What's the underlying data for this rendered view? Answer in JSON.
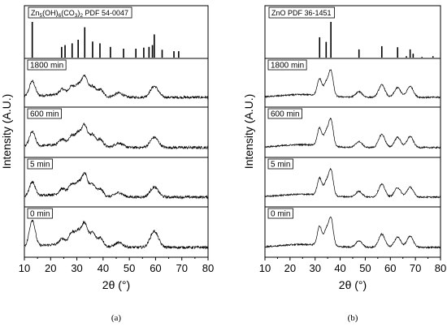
{
  "chart_data": [
    {
      "type": "line",
      "panel_label": "(a)",
      "xlabel": "2θ (°)",
      "ylabel": "Intensity (A.U.)",
      "xlim": [
        10,
        80
      ],
      "xticks": [
        10,
        20,
        30,
        40,
        50,
        60,
        70,
        80
      ],
      "reference": {
        "label_parts": [
          "Zn",
          "5",
          "(OH)",
          "6",
          "(CO",
          "3",
          ")",
          "2",
          " PDF 54-0047"
        ],
        "positions": [
          13.0,
          24.2,
          25.5,
          28.2,
          30.5,
          33.0,
          36.0,
          38.8,
          42.8,
          47.8,
          52.5,
          55.5,
          57.5,
          58.8,
          59.5,
          62.5,
          67.0,
          68.8
        ],
        "heights": [
          1.0,
          0.3,
          0.35,
          0.4,
          0.5,
          0.85,
          0.45,
          0.4,
          0.3,
          0.25,
          0.25,
          0.28,
          0.3,
          0.35,
          0.65,
          0.22,
          0.18,
          0.18
        ]
      },
      "series": [
        {
          "name": "1800 min",
          "peaks": [
            [
              13.0,
              0.55
            ],
            [
              24.5,
              0.2
            ],
            [
              28.0,
              0.3
            ],
            [
              30.5,
              0.35
            ],
            [
              33.0,
              0.7
            ],
            [
              36.0,
              0.35
            ],
            [
              39.0,
              0.25
            ],
            [
              46.0,
              0.15
            ],
            [
              59.5,
              0.4
            ]
          ]
        },
        {
          "name": "600 min",
          "peaks": [
            [
              13.0,
              0.5
            ],
            [
              24.5,
              0.2
            ],
            [
              28.0,
              0.3
            ],
            [
              30.5,
              0.4
            ],
            [
              33.0,
              0.7
            ],
            [
              36.0,
              0.4
            ],
            [
              39.0,
              0.25
            ],
            [
              46.0,
              0.15
            ],
            [
              59.5,
              0.35
            ]
          ]
        },
        {
          "name": "5 min",
          "peaks": [
            [
              13.0,
              0.5
            ],
            [
              24.5,
              0.2
            ],
            [
              28.0,
              0.35
            ],
            [
              30.5,
              0.4
            ],
            [
              33.0,
              0.75
            ],
            [
              36.0,
              0.4
            ],
            [
              39.0,
              0.25
            ],
            [
              46.0,
              0.15
            ],
            [
              59.5,
              0.35
            ]
          ]
        },
        {
          "name": "0 min",
          "peaks": [
            [
              13.0,
              0.9
            ],
            [
              24.5,
              0.2
            ],
            [
              28.0,
              0.4
            ],
            [
              30.5,
              0.45
            ],
            [
              33.0,
              0.75
            ],
            [
              36.0,
              0.45
            ],
            [
              39.0,
              0.3
            ],
            [
              46.0,
              0.15
            ],
            [
              59.5,
              0.55
            ]
          ]
        }
      ]
    },
    {
      "type": "line",
      "panel_label": "(b)",
      "xlabel": "2θ (°)",
      "ylabel": "Intensity (A.U.)",
      "xlim": [
        10,
        80
      ],
      "xticks": [
        10,
        20,
        30,
        40,
        50,
        60,
        70,
        80
      ],
      "reference": {
        "label_parts": [
          "ZnO PDF 36-1451"
        ],
        "positions": [
          31.8,
          34.4,
          36.3,
          47.5,
          56.6,
          62.9,
          66.4,
          67.9,
          69.1,
          72.6,
          77.0
        ],
        "heights": [
          0.57,
          0.44,
          1.0,
          0.23,
          0.32,
          0.29,
          0.04,
          0.23,
          0.11,
          0.02,
          0.04
        ]
      },
      "series": [
        {
          "name": "1800 min",
          "peaks": [
            [
              31.8,
              0.6
            ],
            [
              34.4,
              0.45
            ],
            [
              36.3,
              0.9
            ],
            [
              47.5,
              0.2
            ],
            [
              56.6,
              0.45
            ],
            [
              62.9,
              0.35
            ],
            [
              67.9,
              0.4
            ]
          ]
        },
        {
          "name": "600 min",
          "peaks": [
            [
              31.8,
              0.6
            ],
            [
              34.4,
              0.45
            ],
            [
              36.3,
              0.9
            ],
            [
              47.5,
              0.2
            ],
            [
              56.6,
              0.45
            ],
            [
              62.9,
              0.35
            ],
            [
              67.9,
              0.38
            ]
          ]
        },
        {
          "name": "5 min",
          "peaks": [
            [
              31.8,
              0.6
            ],
            [
              34.4,
              0.45
            ],
            [
              36.3,
              0.9
            ],
            [
              47.5,
              0.2
            ],
            [
              56.6,
              0.45
            ],
            [
              62.9,
              0.33
            ],
            [
              67.9,
              0.35
            ]
          ]
        },
        {
          "name": "0 min",
          "peaks": [
            [
              31.8,
              0.65
            ],
            [
              34.4,
              0.5
            ],
            [
              36.3,
              0.95
            ],
            [
              47.5,
              0.22
            ],
            [
              56.6,
              0.45
            ],
            [
              62.9,
              0.35
            ],
            [
              67.9,
              0.38
            ]
          ]
        }
      ]
    }
  ]
}
